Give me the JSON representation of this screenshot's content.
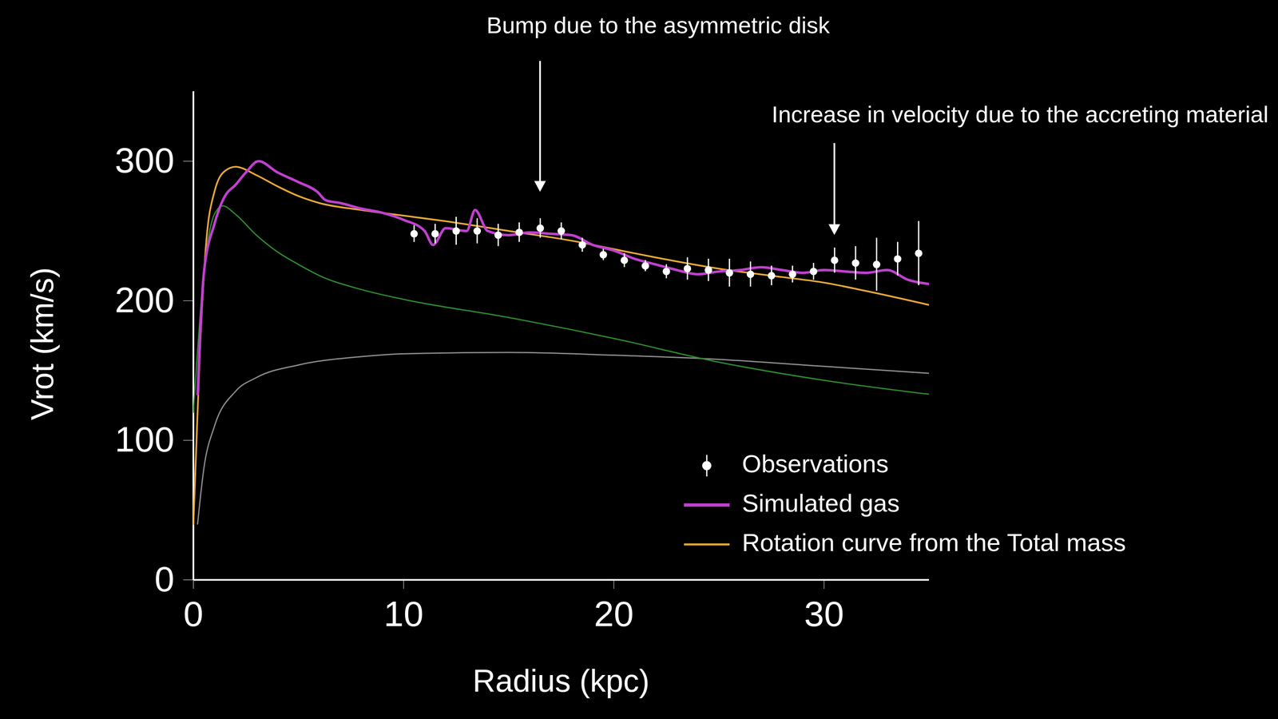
{
  "chart_data": {
    "type": "line",
    "x_label": "Radius (kpc)",
    "y_label": "Vrot (km/s)",
    "xlim": [
      0,
      35
    ],
    "ylim": [
      0,
      350
    ],
    "xticks": [
      0,
      10,
      20,
      30
    ],
    "yticks": [
      0,
      100,
      200,
      300
    ],
    "grid": false,
    "legend": "lower right",
    "annotations": [
      {
        "text": "Bump due to the asymmetric disk",
        "x": 16.5,
        "y": 275
      },
      {
        "text": "Increase in velocity due to the accreting material",
        "x": 30.5,
        "y": 244
      }
    ],
    "series": [
      {
        "type": "line",
        "color": "#8c8c8c",
        "x": [
          0.2,
          0.5,
          1,
          2,
          3,
          5,
          8,
          10,
          15,
          20,
          25,
          30,
          35
        ],
        "values": [
          40,
          80,
          110,
          135,
          145,
          154,
          160,
          162,
          163,
          161,
          158,
          153,
          148
        ]
      },
      {
        "type": "line",
        "color": "#2e8b2e",
        "x": [
          0,
          0.5,
          1,
          1.4,
          2,
          3,
          4,
          5,
          6,
          8,
          10,
          15,
          20,
          25,
          30,
          35
        ],
        "values": [
          120,
          220,
          262,
          268,
          262,
          247,
          235,
          226,
          218,
          208,
          201,
          188,
          173,
          156,
          143,
          133
        ]
      },
      {
        "name": "Rotation curve from the Total mass",
        "type": "line",
        "color": "#e8a838",
        "x": [
          0,
          0.3,
          0.6,
          1,
          1.5,
          2,
          3,
          4,
          5,
          6,
          8,
          10,
          12,
          15,
          18,
          20,
          22,
          25,
          28,
          30,
          32,
          35
        ],
        "values": [
          40,
          160,
          240,
          278,
          293,
          296,
          290,
          282,
          275,
          270,
          265,
          261,
          257,
          250,
          243,
          237,
          231,
          223,
          217,
          213,
          207,
          197
        ]
      },
      {
        "name": "Simulated gas",
        "type": "line",
        "color": "#c040d0",
        "x": [
          0.2,
          0.5,
          1,
          1.5,
          2,
          2.5,
          3.1,
          4,
          5,
          5.9,
          6.3,
          7,
          8,
          9,
          10,
          11,
          11.4,
          12,
          13,
          13.4,
          14,
          15,
          16,
          17,
          18,
          19,
          20,
          21,
          22,
          23,
          24,
          25,
          26,
          27,
          28,
          29,
          30,
          31,
          32,
          33,
          34,
          35
        ],
        "values": [
          133,
          220,
          255,
          275,
          283,
          292,
          300,
          292,
          285,
          278,
          272,
          270,
          266,
          263,
          258,
          250,
          240,
          252,
          250,
          265,
          250,
          247,
          249,
          248,
          247,
          240,
          236,
          230,
          226,
          222,
          219,
          221,
          222,
          224,
          222,
          220,
          222,
          221,
          220,
          222,
          215,
          212
        ]
      },
      {
        "name": "Observations",
        "type": "scatter",
        "color": "#ffffff",
        "marker": "circle",
        "x": [
          10.5,
          11.5,
          12.5,
          13.5,
          14.5,
          15.5,
          16.5,
          17.5,
          18.5,
          19.5,
          20.5,
          21.5,
          22.5,
          23.5,
          24.5,
          25.5,
          26.5,
          27.5,
          28.5,
          29.5,
          30.5,
          31.5,
          32.5,
          33.5,
          34.5
        ],
        "values": [
          248,
          248,
          250,
          250,
          247,
          249,
          252,
          250,
          240,
          233,
          229,
          225,
          221,
          223,
          222,
          220,
          219,
          218,
          219,
          221,
          229,
          227,
          226,
          230,
          234
        ],
        "errors": [
          6,
          7,
          10,
          9,
          8,
          7,
          7,
          6,
          5,
          4,
          5,
          4,
          5,
          8,
          8,
          10,
          9,
          7,
          6,
          6,
          9,
          12,
          19,
          12,
          23
        ]
      }
    ]
  }
}
